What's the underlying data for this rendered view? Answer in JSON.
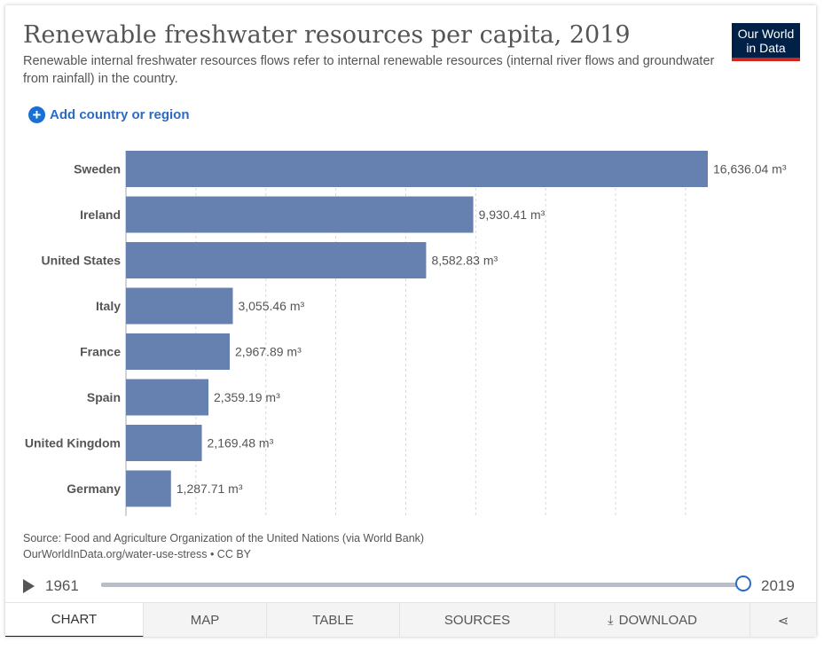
{
  "header": {
    "title": "Renewable freshwater resources per capita, 2019",
    "subtitle": "Renewable internal freshwater resources flows refer to internal renewable resources (internal river flows and groundwater from rainfall) in the country.",
    "logo_line1": "Our World",
    "logo_line2": "in Data"
  },
  "controls": {
    "add_country_label": "Add country or region",
    "add_icon": "plus-circle-icon"
  },
  "chart_data": {
    "type": "bar",
    "orientation": "horizontal",
    "categories": [
      "Sweden",
      "Ireland",
      "United States",
      "Italy",
      "France",
      "Spain",
      "United Kingdom",
      "Germany"
    ],
    "values": [
      16636.04,
      9930.41,
      8582.83,
      3055.46,
      2967.89,
      2359.19,
      2169.48,
      1287.71
    ],
    "value_labels": [
      "16,636.04 m³",
      "9,930.41 m³",
      "8,582.83 m³",
      "3,055.46 m³",
      "2,967.89 m³",
      "2,359.19 m³",
      "2,169.48 m³",
      "1,287.71 m³"
    ],
    "unit": "m³",
    "xlim": [
      0,
      16636.04
    ],
    "grid_step": 2000,
    "grid": true,
    "bar_color": "#6680b0"
  },
  "footer": {
    "source_line": "Source: Food and Agriculture Organization of the United Nations (via World Bank)",
    "url_line": "OurWorldInData.org/water-use-stress • CC BY"
  },
  "timeline": {
    "start_year": "1961",
    "end_year": "2019",
    "progress": 1.0
  },
  "tabs": {
    "chart": "CHART",
    "map": "MAP",
    "table": "TABLE",
    "sources": "SOURCES",
    "download": "DOWNLOAD",
    "download_icon": "download-icon",
    "share_icon": "share-icon"
  },
  "colors": {
    "brand": "#002147",
    "accent_red": "#ce261e",
    "link": "#2b6bc4"
  }
}
